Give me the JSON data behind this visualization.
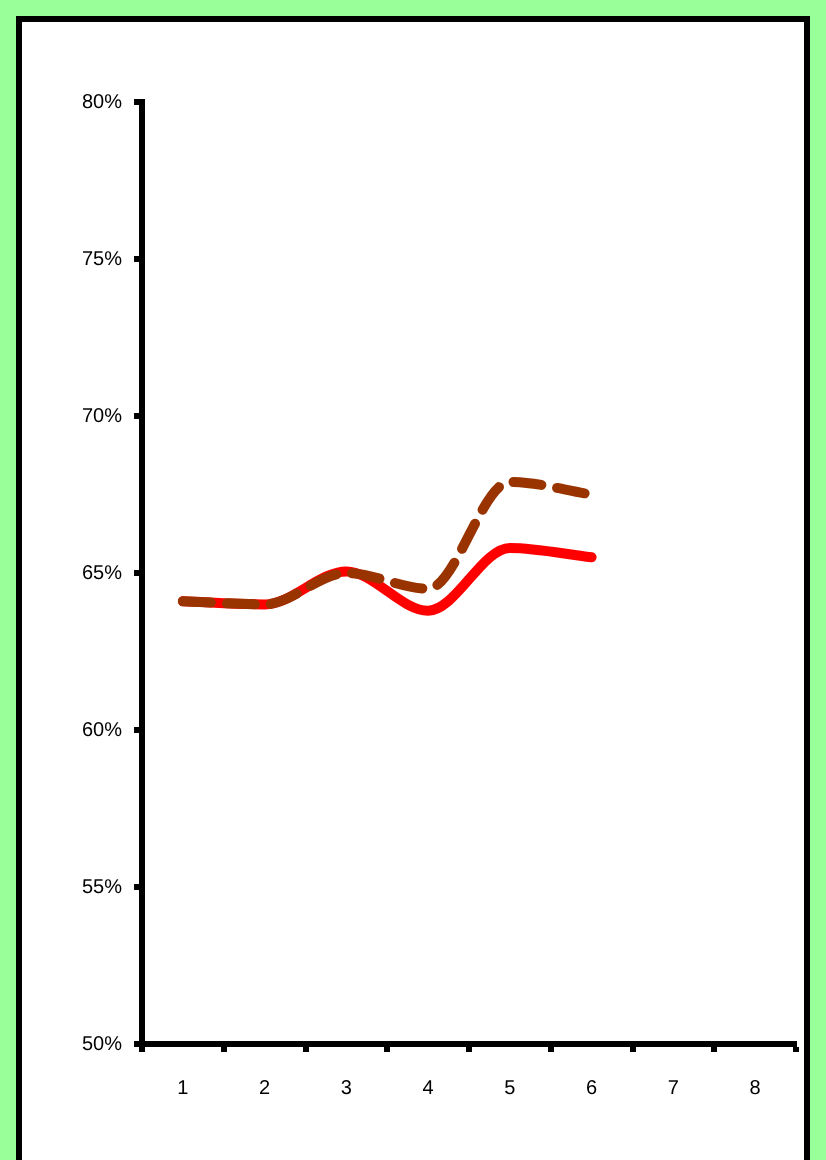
{
  "chart_data": {
    "type": "line",
    "categories": [
      "1",
      "2",
      "3",
      "4",
      "5",
      "6",
      "7",
      "8"
    ],
    "series": [
      {
        "color": "#ff0000",
        "line_style": "solid",
        "values": [
          64.1,
          64.0,
          65.05,
          63.8,
          65.8,
          65.5,
          null,
          null
        ]
      },
      {
        "color": "#993300",
        "line_style": "dashed",
        "values": [
          64.1,
          64.0,
          65.0,
          64.5,
          67.9,
          67.5,
          null,
          null
        ]
      }
    ],
    "ylim": [
      50,
      80
    ],
    "yticks": [
      {
        "value": 50,
        "label": "50%"
      },
      {
        "value": 55,
        "label": "55%"
      },
      {
        "value": 60,
        "label": "60%"
      },
      {
        "value": 65,
        "label": "65%"
      },
      {
        "value": 70,
        "label": "70%"
      },
      {
        "value": 75,
        "label": "75%"
      },
      {
        "value": 80,
        "label": "80%"
      }
    ],
    "grid": false,
    "legend": false,
    "marker": "none"
  }
}
